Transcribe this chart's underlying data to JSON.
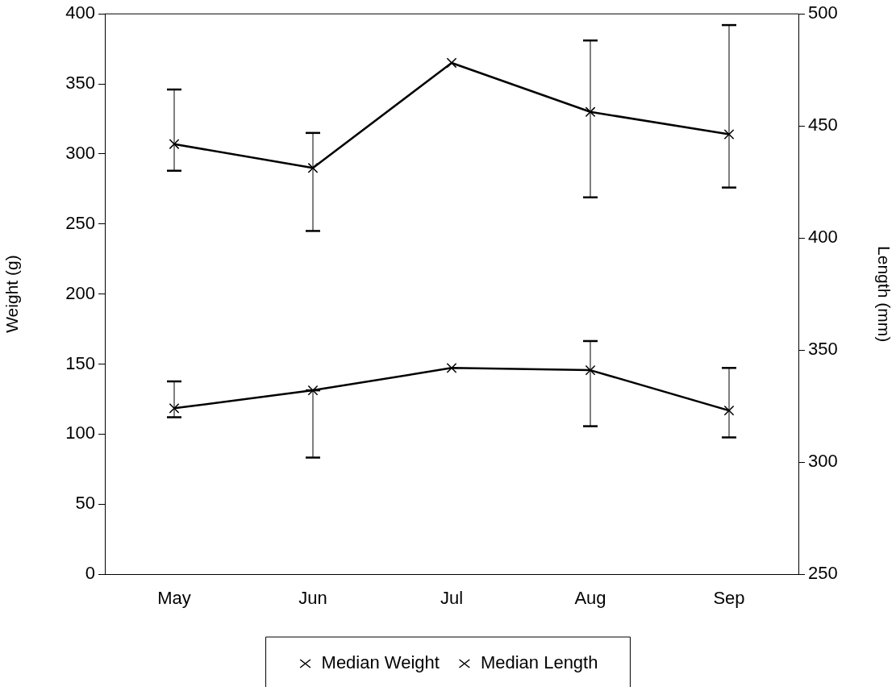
{
  "chart_data": {
    "type": "line",
    "ylabel": "Weight (g)",
    "y2label": "Length (mm)",
    "categories": [
      "May",
      "Jun",
      "Jul",
      "Aug",
      "Sep"
    ],
    "series": [
      {
        "name": "Median Weight",
        "color": "#000000",
        "marker": "cross",
        "values": [
          307,
          290,
          365,
          330,
          314
        ],
        "errors": [
          [
            288,
            346
          ],
          [
            245,
            315
          ],
          null,
          [
            269,
            381
          ],
          [
            276,
            392
          ]
        ]
      },
      {
        "name": "Median Length",
        "color": "#000000",
        "marker": "cross",
        "axis": "y2",
        "values": [
          324,
          332,
          342,
          341,
          323
        ],
        "errors": [
          [
            320,
            336
          ],
          [
            302,
            332
          ],
          null,
          [
            316,
            354
          ],
          [
            311,
            342
          ]
        ]
      }
    ],
    "ylim": [
      0,
      400
    ],
    "yticks": [
      0,
      50,
      100,
      150,
      200,
      250,
      300,
      350,
      400
    ],
    "y2lim": [
      250,
      500
    ],
    "y2ticks": [
      250,
      300,
      350,
      400,
      450,
      500
    ],
    "legend": "bottom"
  }
}
